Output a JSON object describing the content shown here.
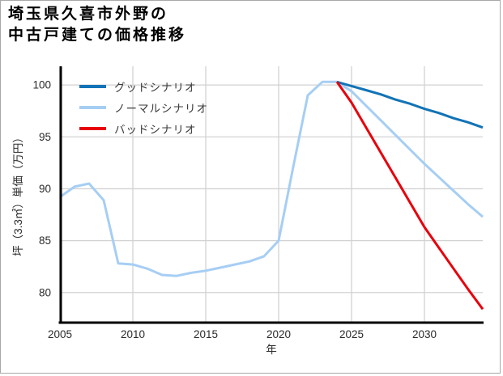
{
  "title": {
    "line1": "埼玉県久喜市外野の",
    "line2": "中古戸建ての価格推移"
  },
  "legend": {
    "items": [
      {
        "label": "グッドシナリオ",
        "color": "#1273b6"
      },
      {
        "label": "ノーマルシナリオ",
        "color": "#a6cef4"
      },
      {
        "label": "バッドシナリオ",
        "color": "#e8000b"
      }
    ]
  },
  "chart_data": {
    "type": "line",
    "title": "埼玉県久喜市外野の中古戸建ての価格推移",
    "xlabel": "年",
    "ylabel": "坪（3.3㎡）単価（万円）",
    "x_ticks": [
      2005,
      2010,
      2015,
      2020,
      2025,
      2030
    ],
    "y_ticks": [
      80,
      85,
      90,
      95,
      100
    ],
    "xlim": [
      2005,
      2034
    ],
    "ylim": [
      77.1,
      101.8
    ],
    "grid": true,
    "grid_color": "#d2d2d2",
    "legend_position": "upper-left",
    "series": [
      {
        "name": "ノーマルシナリオ",
        "color": "#a6cef4",
        "x": [
          2005,
          2006,
          2007,
          2008,
          2009,
          2010,
          2011,
          2012,
          2013,
          2014,
          2015,
          2016,
          2017,
          2018,
          2019,
          2020,
          2021,
          2022,
          2023,
          2024,
          2025,
          2026,
          2027,
          2028,
          2029,
          2030,
          2031,
          2032,
          2033,
          2034
        ],
        "y": [
          89.2,
          90.2,
          90.5,
          88.9,
          82.8,
          82.7,
          82.3,
          81.7,
          81.6,
          81.9,
          82.1,
          82.4,
          82.7,
          83.0,
          83.5,
          85.0,
          92.1,
          99.0,
          100.3,
          100.3,
          99.4,
          98.0,
          96.6,
          95.2,
          93.8,
          92.4,
          91.1,
          89.8,
          88.5,
          87.3
        ]
      },
      {
        "name": "グッドシナリオ",
        "color": "#1273b6",
        "x": [
          2024,
          2025,
          2026,
          2027,
          2028,
          2029,
          2030,
          2031,
          2032,
          2033,
          2034
        ],
        "y": [
          100.3,
          99.9,
          99.5,
          99.1,
          98.6,
          98.2,
          97.7,
          97.3,
          96.8,
          96.4,
          95.9
        ]
      },
      {
        "name": "バッドシナリオ",
        "color": "#e8000b",
        "x": [
          2024,
          2025,
          2026,
          2027,
          2028,
          2029,
          2030,
          2031,
          2032,
          2033,
          2034
        ],
        "y": [
          100.3,
          98.3,
          95.9,
          93.5,
          91.1,
          88.7,
          86.3,
          84.3,
          82.3,
          80.3,
          78.4
        ]
      }
    ]
  }
}
